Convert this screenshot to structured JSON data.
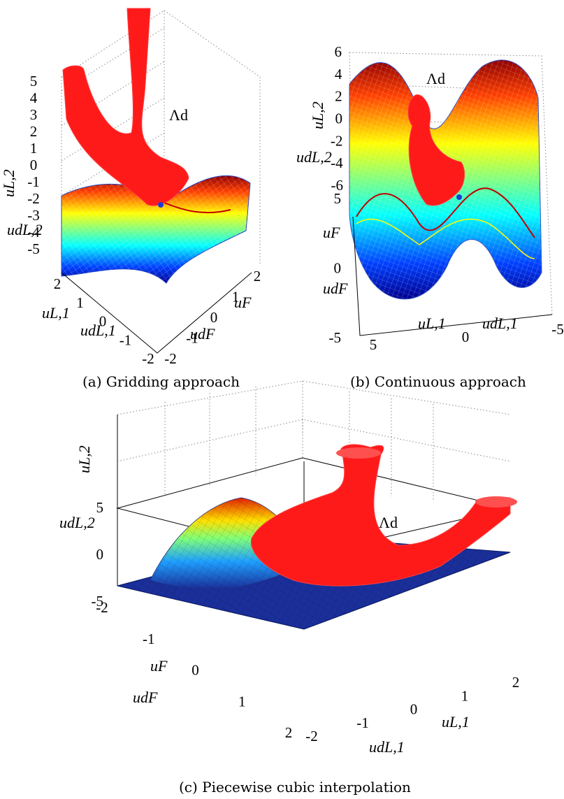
{
  "chart_data": [
    {
      "type": "surface",
      "caption": "(a) Gridding approach",
      "region_label": "Λd",
      "z_axis_label": "uL,2",
      "z_axis_label_alt": "udL,2",
      "x_axis_label": "uL,1",
      "x_axis_label_alt": "udL,1",
      "y_axis_label": "uF",
      "y_axis_label_alt": "udF",
      "z_ticks": [
        "5",
        "4",
        "3",
        "2",
        "1",
        "0",
        "-1",
        "-2",
        "-3",
        "-4",
        "-5"
      ],
      "x_ticks": [
        "2",
        "1",
        "0",
        "-1",
        "-2"
      ],
      "y_ticks": [
        "-2",
        "-1",
        "0",
        "1",
        "2"
      ],
      "zlim": [
        -5,
        5
      ],
      "xlim": [
        -2,
        2
      ],
      "ylim": [
        -2,
        2
      ],
      "surface": "saddle-shaped mesh, colormap jet",
      "grid": true
    },
    {
      "type": "surface",
      "caption": "(b) Continuous approach",
      "region_label": "Λd",
      "z_axis_label": "uL,2",
      "z_axis_label_alt": "udL,2",
      "x_axis_label": "uL,1",
      "x_axis_label_alt": "udL,1",
      "y_axis_label": "uF",
      "y_axis_label_alt": "udF",
      "z_ticks": [
        "6",
        "4",
        "2",
        "0",
        "-2",
        "-4",
        "-6"
      ],
      "x_ticks": [
        "5",
        "0",
        "-5"
      ],
      "y_ticks": [
        "5",
        "0",
        "-5"
      ],
      "zlim": [
        -6,
        6
      ],
      "xlim": [
        -5,
        5
      ],
      "ylim": [
        -5,
        5
      ],
      "surface": "oscillating (sinusoidal) mesh, colormap jet",
      "grid": true
    },
    {
      "type": "surface",
      "caption": "(c) Piecewise cubic interpolation",
      "region_label": "Λd",
      "z_axis_label": "uL,2",
      "z_axis_label_alt": "udL,2",
      "x_axis_label": "uL,1",
      "x_axis_label_alt": "udL,1",
      "y_axis_label": "uF",
      "y_axis_label_alt": "udF",
      "z_ticks": [
        "5",
        "0",
        "-5"
      ],
      "x_ticks": [
        "2",
        "1",
        "0",
        "-1",
        "-2"
      ],
      "y_ticks": [
        "-2",
        "-1",
        "0",
        "1",
        "2"
      ],
      "zlim": [
        -5,
        5
      ],
      "xlim": [
        -2,
        2
      ],
      "ylim": [
        -2,
        2
      ],
      "surface": "flat plane with a single bump near one corner, colormap jet",
      "grid": true
    }
  ],
  "colors": {
    "region": "#ff1a1a",
    "dot": "#1f3bd6",
    "flat_surface": "#1a2f9a",
    "axis": "#000000",
    "grid": "#888888"
  }
}
